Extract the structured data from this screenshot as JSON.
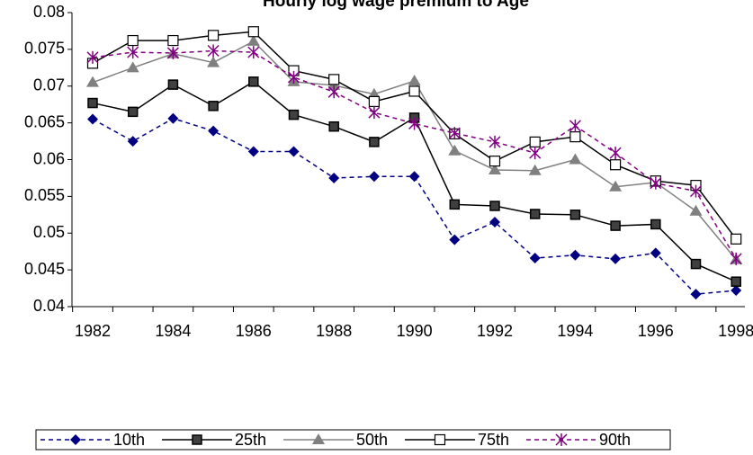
{
  "chart_data": {
    "type": "line",
    "title": "Hourly log wage premium to Age",
    "x": [
      1982,
      null,
      1984,
      null,
      1986,
      null,
      1988,
      null,
      1990,
      null,
      1992,
      null,
      1994,
      null,
      1996,
      null,
      1998
    ],
    "ylim": [
      0.04,
      0.08
    ],
    "yticks": [
      0.04,
      0.045,
      0.05,
      0.055,
      0.06,
      0.065,
      0.07,
      0.075,
      0.08
    ],
    "grid": false,
    "legend": "bottom",
    "series": [
      {
        "name": "10th",
        "color": "#000080",
        "marker": "diamond",
        "dashed": true,
        "values": [
          0.0655,
          0.0625,
          0.0656,
          0.0639,
          0.0611,
          0.0611,
          0.0575,
          0.0577,
          0.0577,
          0.0491,
          0.0515,
          0.0466,
          0.047,
          0.0465,
          0.0473,
          0.0417,
          0.0422
        ]
      },
      {
        "name": "25th",
        "color": "#000000",
        "marker": "square-filled",
        "dashed": false,
        "values": [
          0.0677,
          0.0665,
          0.0702,
          0.0673,
          0.0706,
          0.0661,
          0.0645,
          0.0624,
          0.0657,
          0.0539,
          0.0537,
          0.0526,
          0.0525,
          0.051,
          0.0512,
          0.0458,
          0.0434
        ]
      },
      {
        "name": "50th",
        "color": "#808080",
        "marker": "triangle",
        "dashed": false,
        "values": [
          0.0705,
          0.0725,
          0.0744,
          0.0732,
          0.0761,
          0.0706,
          0.0701,
          0.0689,
          0.0707,
          0.0612,
          0.0586,
          0.0585,
          0.06,
          0.0563,
          0.0569,
          0.053,
          0.0464
        ]
      },
      {
        "name": "75th",
        "color": "#000000",
        "marker": "square-open",
        "dashed": false,
        "values": [
          0.0731,
          0.0762,
          0.0762,
          0.0769,
          0.0774,
          0.0721,
          0.0709,
          0.0679,
          0.0693,
          0.0635,
          0.0598,
          0.0624,
          0.0631,
          0.0593,
          0.0571,
          0.0565,
          0.0492
        ]
      },
      {
        "name": "90th",
        "color": "#800080",
        "marker": "asterisk",
        "dashed": true,
        "values": [
          0.0739,
          0.0746,
          0.0745,
          0.0748,
          0.0746,
          0.0712,
          0.0692,
          0.0664,
          0.0649,
          0.0636,
          0.0624,
          0.0609,
          0.0646,
          0.0609,
          0.0568,
          0.0557,
          0.0465
        ]
      }
    ]
  }
}
